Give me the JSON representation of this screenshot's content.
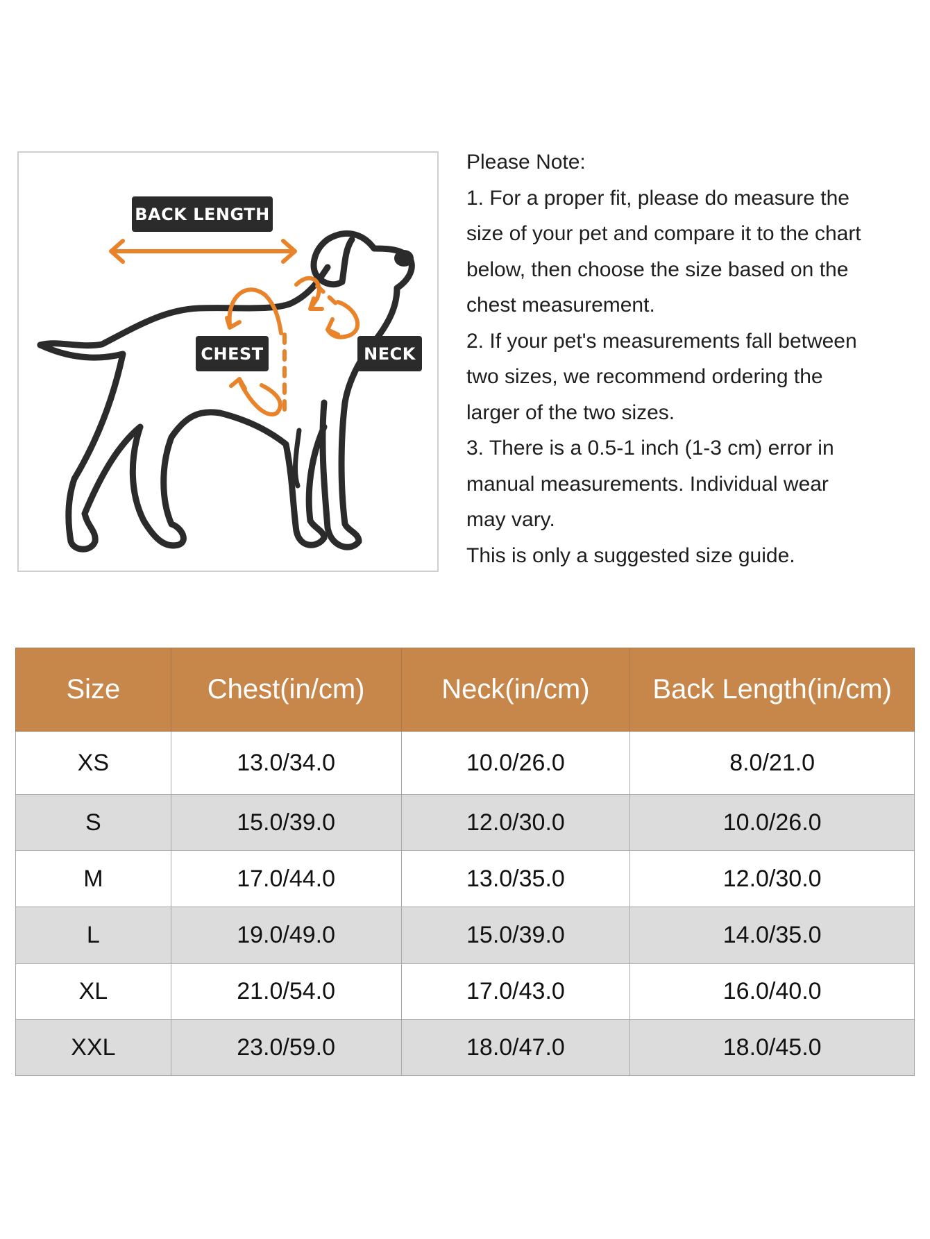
{
  "figure": {
    "labels": {
      "back_length": "BACK LENGTH",
      "chest": "CHEST",
      "neck": "NECK"
    },
    "accent_color": "#e8832a",
    "outline_color": "#2b2b2b"
  },
  "notes": {
    "title": "Please Note:",
    "lines": [
      "1. For a proper fit, please do measure the",
      "size of your pet and compare it to the chart",
      "below, then choose the size based on the",
      "chest measurement.",
      "2. If your pet's measurements fall between",
      "two sizes, we recommend ordering the",
      "larger of the two sizes.",
      "3. There is a 0.5-1 inch (1-3 cm) error in",
      "manual measurements. Individual wear",
      "may vary.",
      "This is only a suggested size guide."
    ]
  },
  "table": {
    "header_color": "#c8874a",
    "columns": [
      "Size",
      "Chest(in/cm)",
      "Neck(in/cm)",
      "Back Length(in/cm)"
    ],
    "rows": [
      [
        "XS",
        "13.0/34.0",
        "10.0/26.0",
        "8.0/21.0"
      ],
      [
        "S",
        "15.0/39.0",
        "12.0/30.0",
        "10.0/26.0"
      ],
      [
        "M",
        "17.0/44.0",
        "13.0/35.0",
        "12.0/30.0"
      ],
      [
        "L",
        "19.0/49.0",
        "15.0/39.0",
        "14.0/35.0"
      ],
      [
        "XL",
        "21.0/54.0",
        "17.0/43.0",
        "16.0/40.0"
      ],
      [
        "XXL",
        "23.0/59.0",
        "18.0/47.0",
        "18.0/45.0"
      ]
    ]
  }
}
